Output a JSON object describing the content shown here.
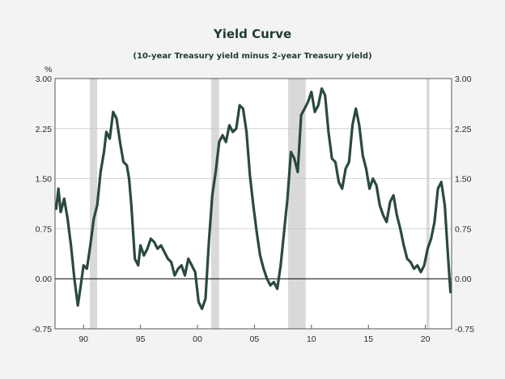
{
  "chart_data": {
    "type": "line",
    "title": "Yield Curve",
    "subtitle": "(10-year Treasury yield minus 2-year Treasury yield)",
    "ylabel_left": "%",
    "ylim": [
      -0.75,
      3.0
    ],
    "xlim": [
      1987.5,
      2022.3
    ],
    "yticks": [
      3.0,
      2.25,
      1.5,
      0.75,
      0.0,
      -0.75
    ],
    "ytick_labels": [
      "3.00",
      "2.25",
      "1.50",
      "0.75",
      "0.00",
      "-0.75"
    ],
    "xticks": [
      1990,
      1995,
      2000,
      2005,
      2010,
      2015,
      2020
    ],
    "xtick_labels": [
      "90",
      "95",
      "00",
      "05",
      "10",
      "15",
      "20"
    ],
    "grid": "horizontal",
    "line_color": "#2a4a3e",
    "recession_color": "#d9d9d9",
    "zero_line_color": "#000000",
    "recessions": [
      [
        1990.55,
        1991.2
      ],
      [
        2001.2,
        2001.9
      ],
      [
        2007.95,
        2009.5
      ],
      [
        2020.1,
        2020.35
      ]
    ],
    "series": [
      {
        "x": [
          1987.6,
          1987.8,
          1988.0,
          1988.3,
          1988.6,
          1988.9,
          1989.2,
          1989.5,
          1989.8,
          1990.0,
          1990.3,
          1990.6,
          1990.9,
          1991.2,
          1991.5,
          1991.8,
          1992.0,
          1992.3,
          1992.6,
          1992.9,
          1993.2,
          1993.5,
          1993.8,
          1994.0,
          1994.2,
          1994.5,
          1994.8,
          1995.0,
          1995.3,
          1995.6,
          1995.9,
          1996.2,
          1996.5,
          1996.8,
          1997.1,
          1997.4,
          1997.7,
          1998.0,
          1998.3,
          1998.6,
          1998.9,
          1999.2,
          1999.5,
          1999.8,
          2000.1,
          2000.4,
          2000.7,
          2001.0,
          2001.3,
          2001.6,
          2001.9,
          2002.2,
          2002.5,
          2002.8,
          2003.1,
          2003.4,
          2003.7,
          2004.0,
          2004.3,
          2004.6,
          2004.9,
          2005.2,
          2005.5,
          2005.8,
          2006.1,
          2006.4,
          2006.7,
          2007.0,
          2007.3,
          2007.6,
          2007.9,
          2008.2,
          2008.5,
          2008.8,
          2009.1,
          2009.4,
          2009.7,
          2010.0,
          2010.3,
          2010.6,
          2010.9,
          2011.2,
          2011.5,
          2011.8,
          2012.1,
          2012.4,
          2012.7,
          2013.0,
          2013.3,
          2013.6,
          2013.9,
          2014.2,
          2014.5,
          2014.8,
          2015.1,
          2015.4,
          2015.7,
          2016.0,
          2016.3,
          2016.6,
          2016.9,
          2017.2,
          2017.5,
          2017.8,
          2018.1,
          2018.4,
          2018.7,
          2019.0,
          2019.3,
          2019.6,
          2019.9,
          2020.2,
          2020.5,
          2020.8,
          2021.1,
          2021.4,
          2021.7,
          2022.0,
          2022.2
        ],
        "y": [
          1.05,
          1.35,
          1.0,
          1.2,
          0.9,
          0.5,
          0.0,
          -0.4,
          -0.05,
          0.2,
          0.15,
          0.5,
          0.9,
          1.1,
          1.6,
          1.9,
          2.2,
          2.1,
          2.5,
          2.4,
          2.05,
          1.75,
          1.7,
          1.5,
          1.1,
          0.3,
          0.2,
          0.5,
          0.35,
          0.45,
          0.6,
          0.55,
          0.45,
          0.5,
          0.4,
          0.3,
          0.25,
          0.05,
          0.15,
          0.2,
          0.05,
          0.3,
          0.2,
          0.1,
          -0.35,
          -0.45,
          -0.3,
          0.55,
          1.25,
          1.6,
          2.05,
          2.15,
          2.05,
          2.3,
          2.2,
          2.25,
          2.6,
          2.55,
          2.2,
          1.55,
          1.1,
          0.7,
          0.35,
          0.15,
          0.0,
          -0.1,
          -0.05,
          -0.15,
          0.2,
          0.7,
          1.2,
          1.9,
          1.8,
          1.6,
          2.45,
          2.55,
          2.65,
          2.8,
          2.5,
          2.6,
          2.85,
          2.75,
          2.2,
          1.8,
          1.75,
          1.45,
          1.35,
          1.65,
          1.75,
          2.3,
          2.55,
          2.3,
          1.85,
          1.65,
          1.35,
          1.5,
          1.4,
          1.1,
          0.95,
          0.85,
          1.15,
          1.25,
          0.95,
          0.75,
          0.5,
          0.3,
          0.25,
          0.15,
          0.2,
          0.1,
          0.2,
          0.45,
          0.6,
          0.85,
          1.35,
          1.45,
          1.1,
          0.3,
          -0.2
        ]
      }
    ]
  }
}
